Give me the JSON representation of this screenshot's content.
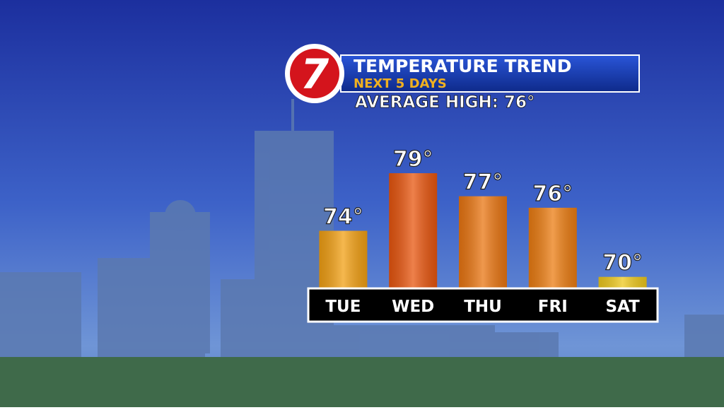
{
  "chart_data": {
    "type": "bar",
    "title": "TEMPERATURE TREND",
    "subtitle": "NEXT 5 DAYS",
    "annotation": "AVERAGE HIGH: 76°",
    "logo": "7",
    "categories": [
      "TUE",
      "WED",
      "THU",
      "FRI",
      "SAT"
    ],
    "values": [
      74,
      79,
      77,
      76,
      70
    ],
    "value_labels": [
      "74°",
      "79°",
      "77°",
      "76°",
      "70°"
    ],
    "colors": [
      "#f2a014",
      "#e8560f",
      "#ea7612",
      "#ec7d12",
      "#eec81c"
    ],
    "ylim": [
      69,
      80
    ]
  }
}
